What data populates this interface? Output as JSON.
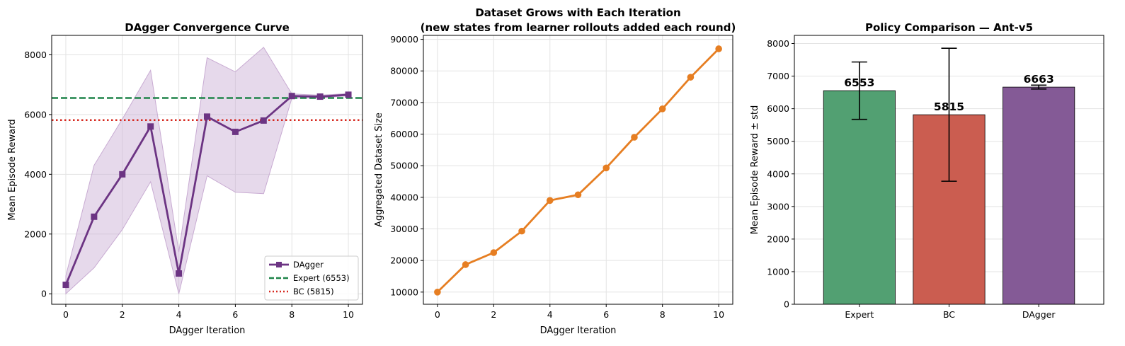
{
  "chart_data": [
    {
      "type": "line",
      "title": "DAgger Convergence Curve",
      "xlabel": "DAgger Iteration",
      "ylabel": "Mean Episode Reward",
      "xlim": [
        -0.5,
        10.5
      ],
      "ylim": [
        -350,
        8650
      ],
      "xticks": [
        "0",
        "2",
        "4",
        "6",
        "8",
        "10"
      ],
      "yticks": [
        "0",
        "2000",
        "4000",
        "6000",
        "8000"
      ],
      "grid": true,
      "legend_position": "lower right",
      "series": [
        {
          "name": "DAgger",
          "color": "#6c3483",
          "marker": "square",
          "x": [
            0,
            1,
            2,
            3,
            4,
            5,
            6,
            7,
            8,
            9,
            10
          ],
          "values": [
            300,
            2580,
            4000,
            5600,
            680,
            5930,
            5420,
            5800,
            6620,
            6600,
            6663
          ],
          "band_lower": [
            0,
            870,
            2150,
            3750,
            0,
            3950,
            3400,
            3350,
            6550,
            6550,
            6630
          ],
          "band_upper": [
            600,
            4300,
            5850,
            7480,
            1400,
            7900,
            7430,
            8250,
            6690,
            6650,
            6700
          ],
          "band_color": "#c8abd2"
        }
      ],
      "reference_lines": [
        {
          "name": "Expert (6553)",
          "value": 6553,
          "color": "#1e8449",
          "style": "dashed"
        },
        {
          "name": "BC (5815)",
          "value": 5815,
          "color": "#d6281f",
          "style": "dotted"
        }
      ]
    },
    {
      "type": "line",
      "title": "Dataset Grows with Each Iteration",
      "subtitle": "(new states from learner rollouts added each round)",
      "xlabel": "DAgger Iteration",
      "ylabel": "Aggregated Dataset Size",
      "xlim": [
        -0.5,
        10.5
      ],
      "ylim": [
        6150,
        91250
      ],
      "xticks": [
        "0",
        "2",
        "4",
        "6",
        "8",
        "10"
      ],
      "yticks": [
        "10000",
        "20000",
        "30000",
        "40000",
        "50000",
        "60000",
        "70000",
        "80000",
        "90000"
      ],
      "grid": true,
      "series": [
        {
          "color": "#e67e22",
          "marker": "circle",
          "x": [
            0,
            1,
            2,
            3,
            4,
            5,
            6,
            7,
            8,
            9,
            10
          ],
          "values": [
            10000,
            18700,
            22500,
            29300,
            39000,
            40800,
            49300,
            59000,
            68000,
            78000,
            87000
          ]
        }
      ]
    },
    {
      "type": "bar",
      "title": "Policy Comparison — Ant-v5",
      "xlabel": "",
      "ylabel": "Mean Episode Reward ± std",
      "ylim": [
        0,
        8250
      ],
      "yticks": [
        "0",
        "1000",
        "2000",
        "3000",
        "4000",
        "5000",
        "6000",
        "7000",
        "8000"
      ],
      "grid": true,
      "categories": [
        "Expert",
        "BC",
        "DAgger"
      ],
      "values": [
        6553,
        5815,
        6663
      ],
      "value_labels": [
        "6553",
        "5815",
        "6663"
      ],
      "errors": [
        880,
        2040,
        60
      ],
      "colors": [
        "#52a072",
        "#cb5d50",
        "#845a96"
      ]
    }
  ]
}
